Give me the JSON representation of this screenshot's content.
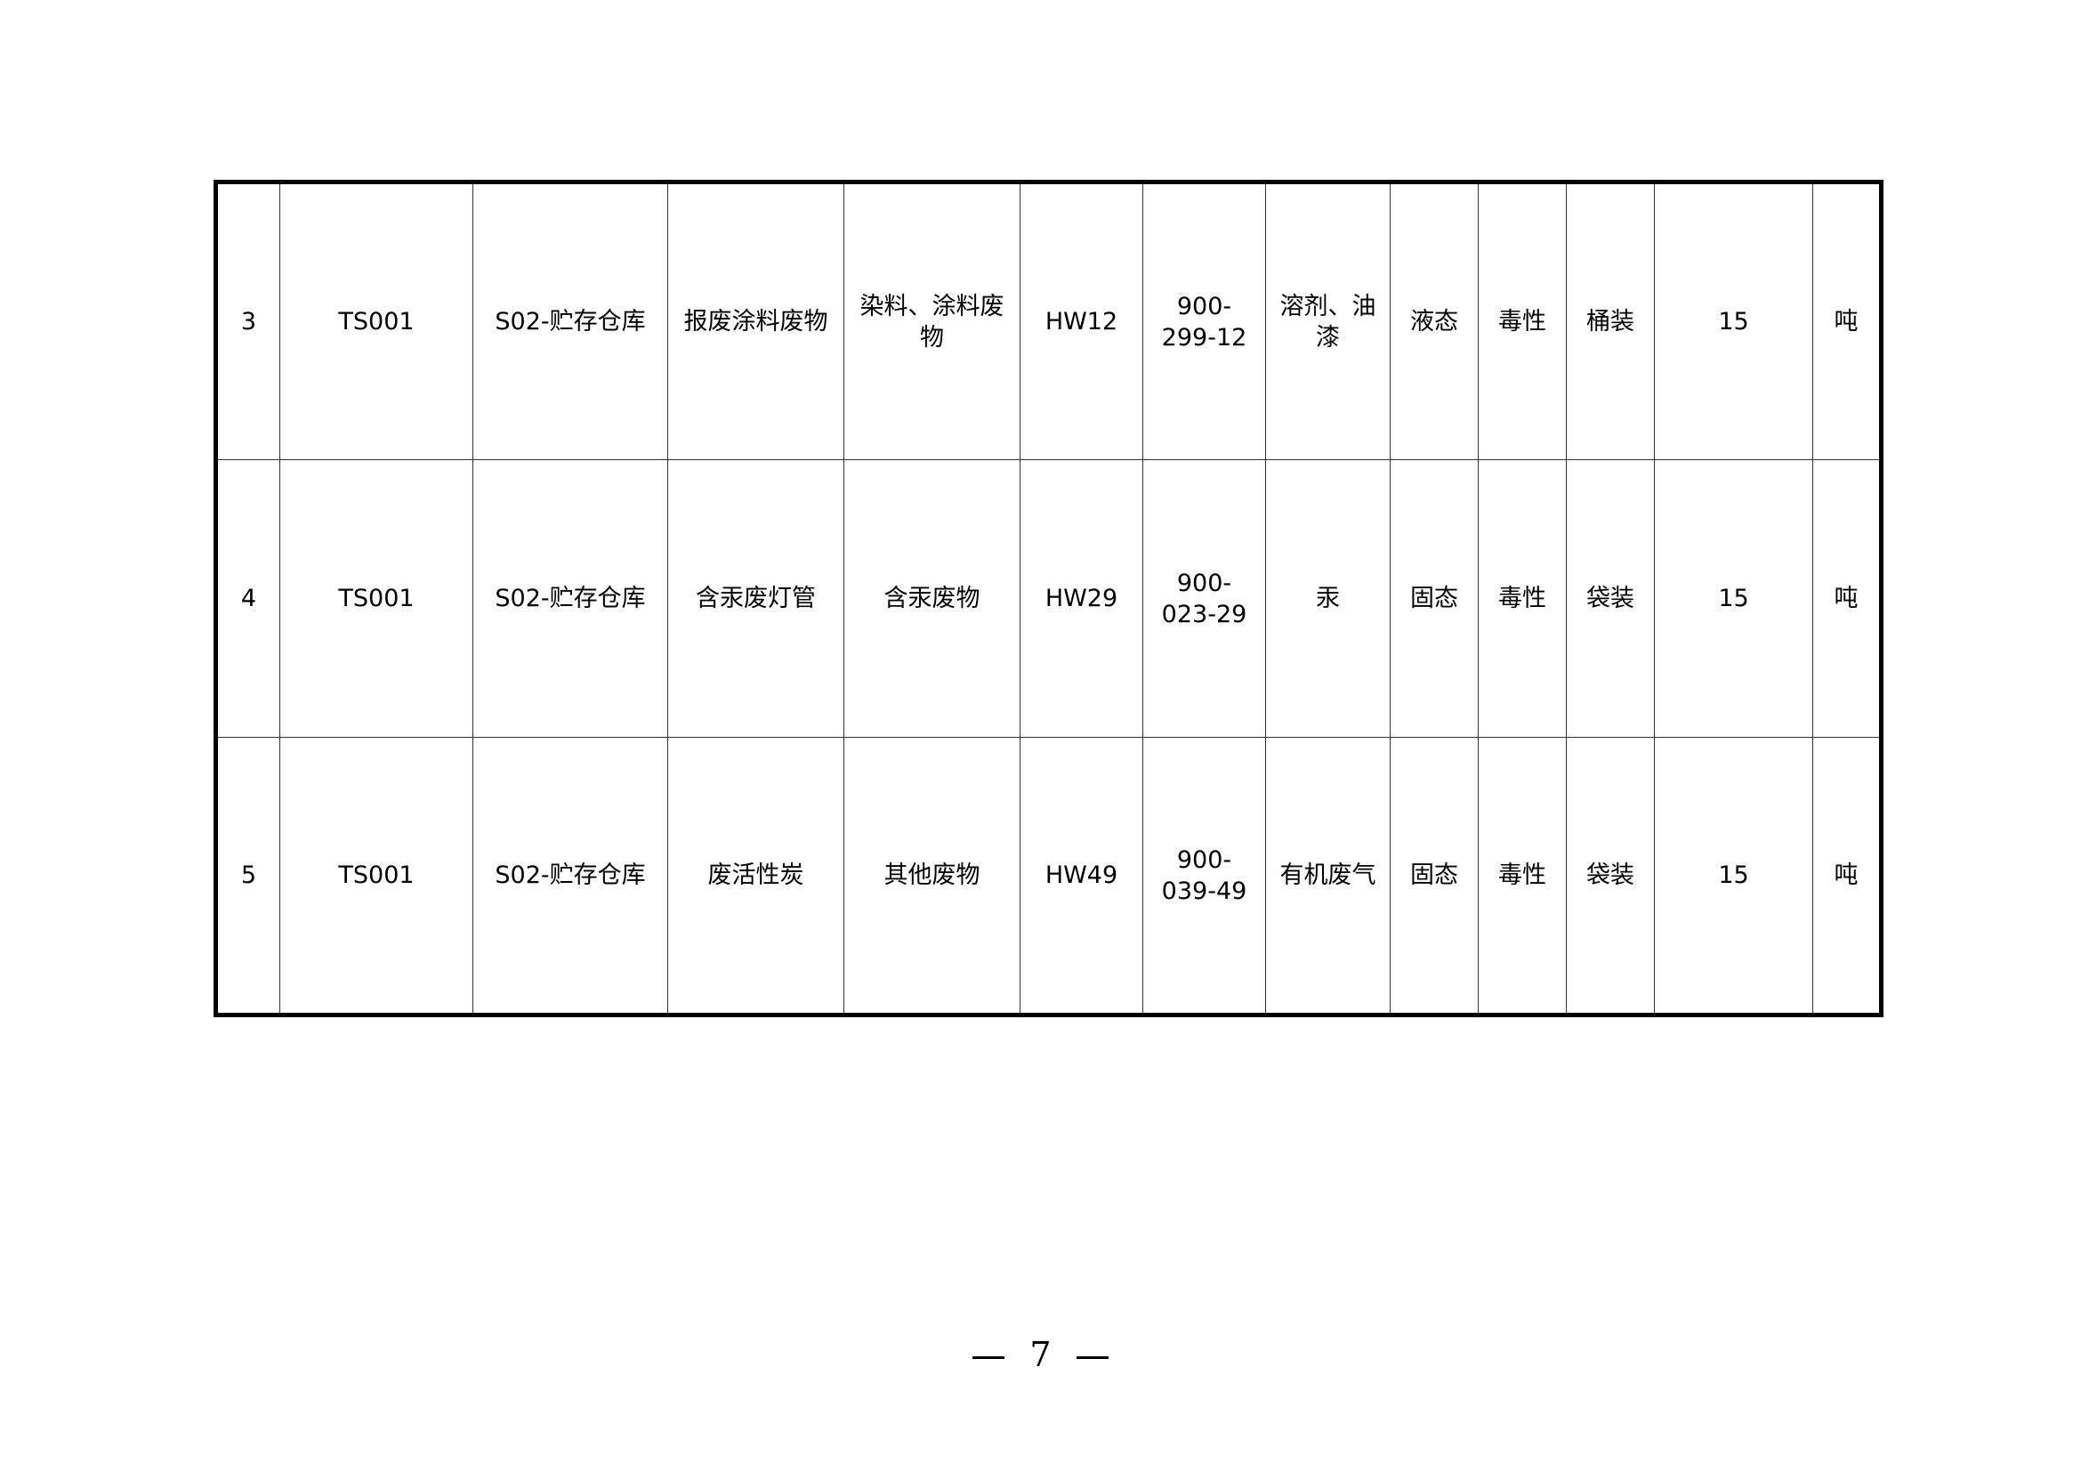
{
  "table": {
    "rows": [
      [
        "3",
        "TS001",
        "S02-贮存仓库",
        "报废涂料废物",
        "染料、涂料废物",
        "HW12",
        "900-299-12",
        "溶剂、油漆",
        "液态",
        "毒性",
        "桶装",
        "15",
        "吨"
      ],
      [
        "4",
        "TS001",
        "S02-贮存仓库",
        "含汞废灯管",
        "含汞废物",
        "HW29",
        "900-023-29",
        "汞",
        "固态",
        "毒性",
        "袋装",
        "15",
        "吨"
      ],
      [
        "5",
        "TS001",
        "S02-贮存仓库",
        "废活性炭",
        "其他废物",
        "HW49",
        "900-039-49",
        "有机废气",
        "固态",
        "毒性",
        "袋装",
        "15",
        "吨"
      ]
    ]
  },
  "footer": {
    "page_number": "7"
  }
}
